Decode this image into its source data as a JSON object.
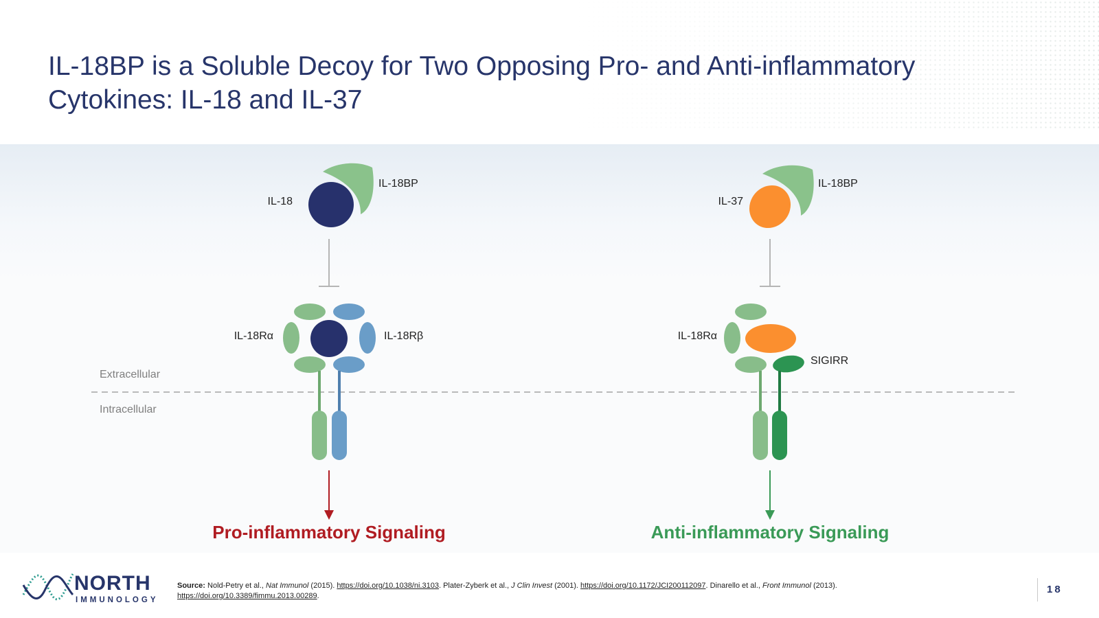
{
  "title": "IL-18BP is a Soluble Decoy for Two Opposing Pro- and Anti-inflammatory Cytokines: IL-18 and IL-37",
  "zones": {
    "extracellular": "Extracellular",
    "intracellular": "Intracellular"
  },
  "left_pathway": {
    "ligand_label": "IL-18",
    "binding_protein_label": "IL-18BP",
    "receptor_alpha_label": "IL-18Rα",
    "receptor_beta_label": "IL-18Rβ",
    "outcome_label": "Pro-inflammatory Signaling"
  },
  "right_pathway": {
    "ligand_label": "IL-37",
    "binding_protein_label": "IL-18BP",
    "receptor_alpha_label": "IL-18Rα",
    "coreceptor_label": "SIGIRR",
    "outcome_label": "Anti-inflammatory Signaling"
  },
  "colors": {
    "title": "#27356a",
    "il18": "#27316c",
    "il37": "#fb8f2f",
    "il18bp": "#8ac28b",
    "receptor_alpha": "#88bd8a",
    "receptor_beta": "#6a9dc8",
    "sigirr": "#2c9452",
    "pro_inflammatory": "#b01c22",
    "anti_inflammatory": "#3a9a57"
  },
  "footer": {
    "logo_word": "NORTH",
    "logo_sub": "IMMUNOLOGY",
    "source_label": "Source:",
    "src1_text": " Nold-Petry et al., ",
    "src1_journal": "Nat Immunol",
    "src1_year": " (2015). ",
    "src1_link": "https://doi.org/10.1038/ni.3103",
    "src2_text": ". Plater-Zyberk et al., ",
    "src2_journal": "J Clin Invest",
    "src2_year": " (2001). ",
    "src2_link": "https://doi.org/10.1172/JCI200112097",
    "src3_text": ". Dinarello et al., ",
    "src3_journal": "Front Immunol",
    "src3_year": " (2013). ",
    "src3_link": "https://doi.org/10.3389/fimmu.2013.00289",
    "src3_end": ".",
    "page_number": "18"
  }
}
